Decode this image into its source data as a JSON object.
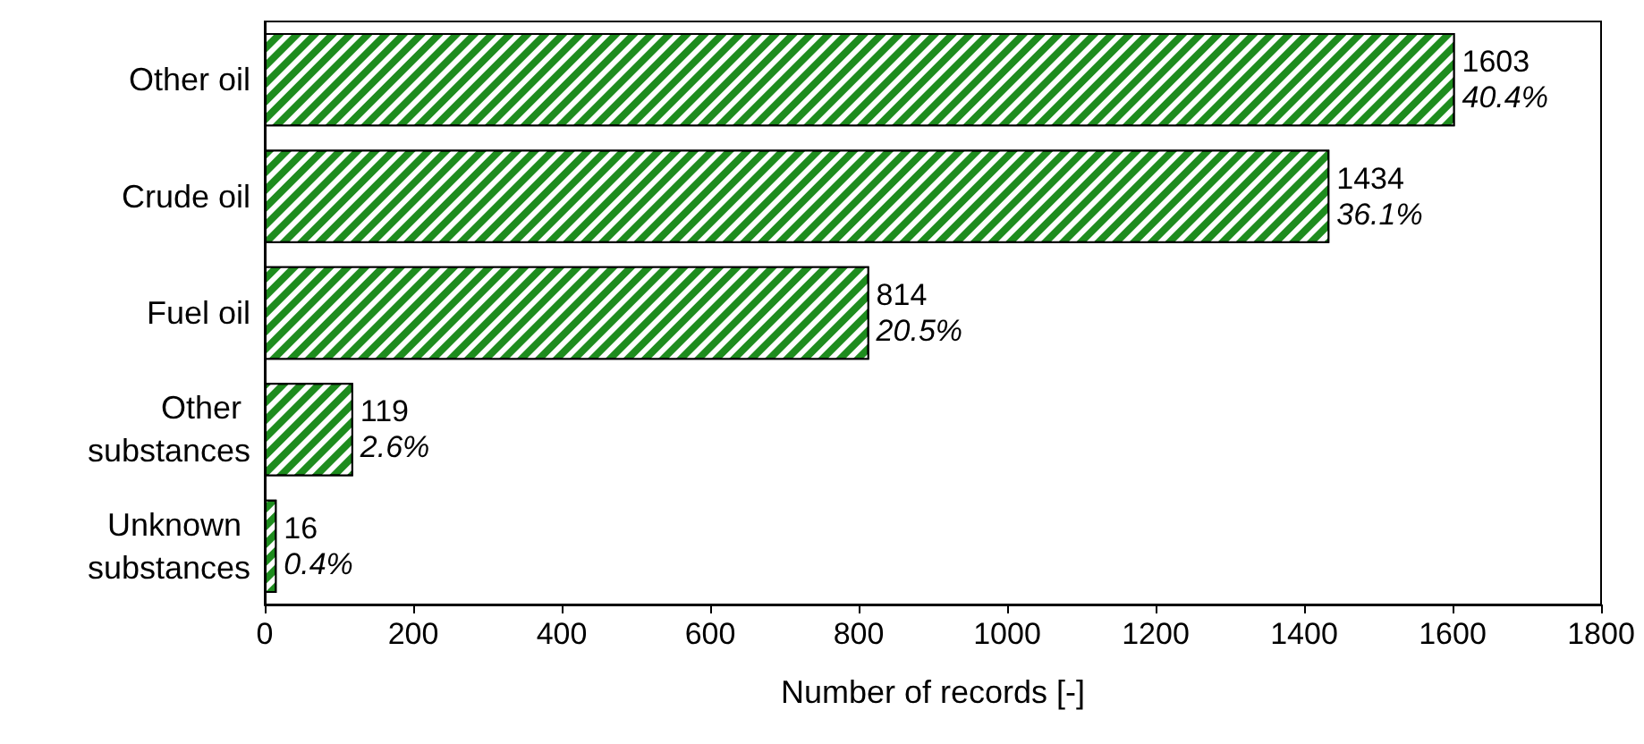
{
  "chart_data": {
    "type": "bar",
    "orientation": "horizontal",
    "xlabel": "Number of records [-]",
    "categories": [
      "Other oil",
      "Crude oil",
      "Fuel oil",
      "Other substances",
      "Unknown substances"
    ],
    "values": [
      1603,
      1434,
      814,
      119,
      16
    ],
    "value_labels": [
      "1603\n40.4%",
      "1434\n36.1%",
      "814\n20.5%",
      "119\n2.6%",
      "16\n0.4%"
    ],
    "color": "#1e8c1e",
    "xlim": [
      0,
      1800
    ],
    "xticks": [
      0,
      200,
      400,
      600,
      800,
      1000,
      1200,
      1400,
      1600,
      1800
    ],
    "grid": false
  }
}
